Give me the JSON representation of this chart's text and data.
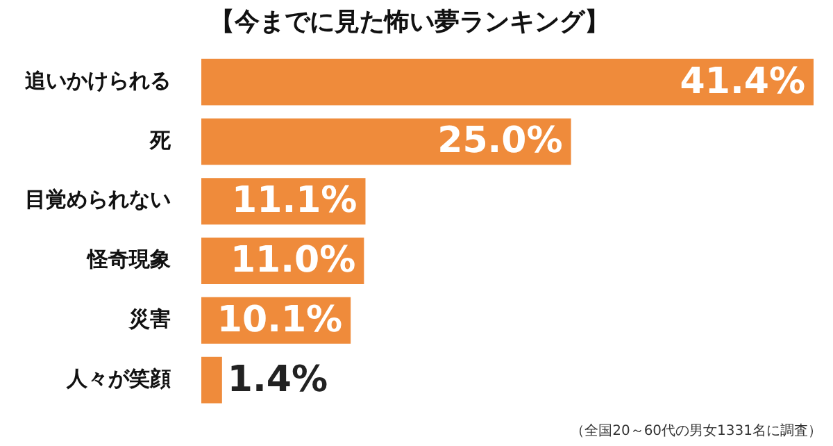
{
  "chart_data": {
    "type": "bar",
    "orientation": "horizontal",
    "title": "【今までに見た怖い夢ランキング】",
    "categories": [
      "追いかけられる",
      "死",
      "目覚められない",
      "怪奇現象",
      "災害",
      "人々が笑顔"
    ],
    "values": [
      41.4,
      25.0,
      11.1,
      11.0,
      10.1,
      1.4
    ],
    "value_labels": [
      "41.4%",
      "25.0%",
      "11.1%",
      "11.0%",
      "10.1%",
      "1.4%"
    ],
    "color": "#ef8b3b",
    "annotations": [
      "（全国20～60代の男女1331名に調査）"
    ],
    "grid": false,
    "legend": false
  }
}
